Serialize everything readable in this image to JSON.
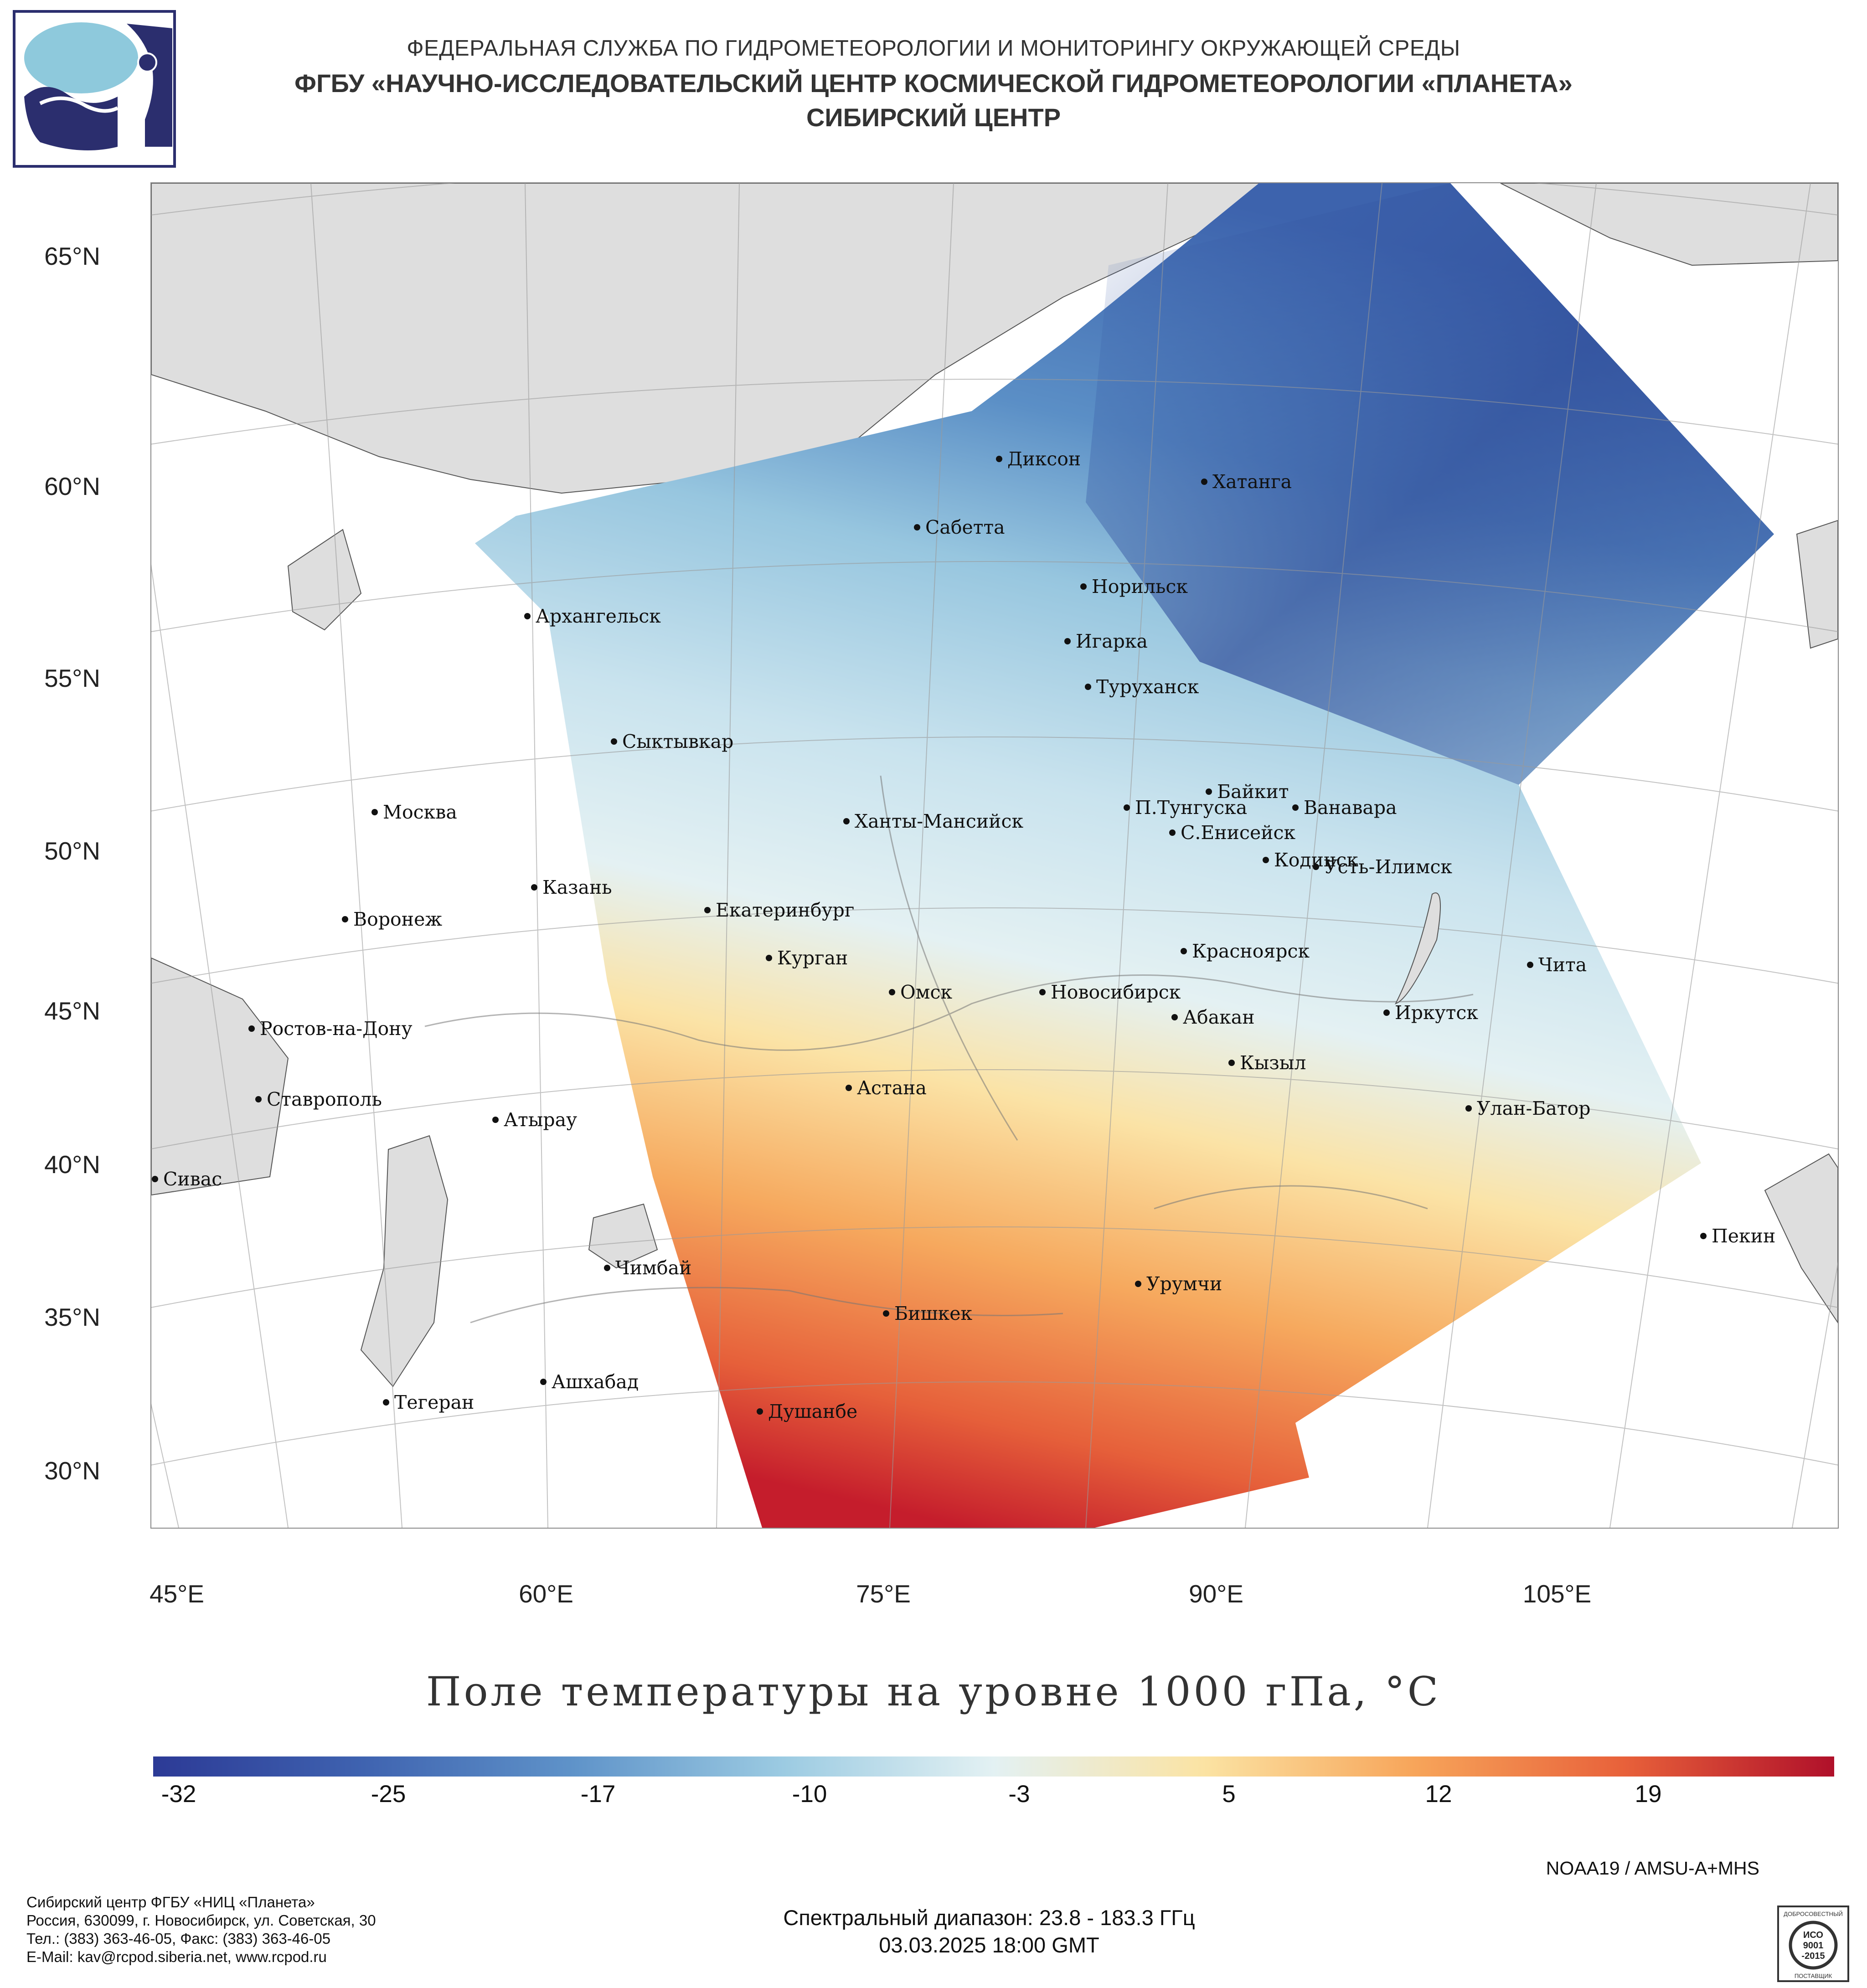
{
  "header": {
    "line1": "ФЕДЕРАЛЬНАЯ СЛУЖБА ПО ГИДРОМЕТЕОРОЛОГИИ И МОНИТОРИНГУ ОКРУЖАЮЩЕЙ СРЕДЫ",
    "line2": "ФГБУ «НАУЧНО-ИССЛЕДОВАТЕЛЬСКИЙ ЦЕНТР КОСМИЧЕСКОЙ ГИДРОМЕТЕОРОЛОГИИ «ПЛАНЕТА»",
    "line3": "СИБИРСКИЙ ЦЕНТР"
  },
  "map": {
    "lat_labels": [
      "65°N",
      "60°N",
      "55°N",
      "50°N",
      "45°N",
      "40°N",
      "35°N",
      "30°N"
    ],
    "lon_labels": [
      "45°E",
      "60°E",
      "75°E",
      "90°E",
      "105°E"
    ],
    "cities": [
      {
        "name": "Диксон"
      },
      {
        "name": "Хатанга"
      },
      {
        "name": "Сабетта"
      },
      {
        "name": "Норильск"
      },
      {
        "name": "Игарка"
      },
      {
        "name": "Архангельск"
      },
      {
        "name": "Туруханск"
      },
      {
        "name": "Сыктывкар"
      },
      {
        "name": "Байкит"
      },
      {
        "name": "П.Тунгуска"
      },
      {
        "name": "Ванавара"
      },
      {
        "name": "Москва"
      },
      {
        "name": "Ханты-Мансийск"
      },
      {
        "name": "С.Енисейск"
      },
      {
        "name": "Кодинск"
      },
      {
        "name": "Усть-Илимск"
      },
      {
        "name": "Казань"
      },
      {
        "name": "Екатеринбург"
      },
      {
        "name": "Воронеж"
      },
      {
        "name": "Красноярск"
      },
      {
        "name": "Курган"
      },
      {
        "name": "Чита"
      },
      {
        "name": "Омск"
      },
      {
        "name": "Новосибирск"
      },
      {
        "name": "Иркутск"
      },
      {
        "name": "Ростов-на-Дону"
      },
      {
        "name": "Абакан"
      },
      {
        "name": "Кызыл"
      },
      {
        "name": "Астана"
      },
      {
        "name": "Ставрополь"
      },
      {
        "name": "Улан-Батор"
      },
      {
        "name": "Атырау"
      },
      {
        "name": "Сивас"
      },
      {
        "name": "Пекин"
      },
      {
        "name": "Чимбай"
      },
      {
        "name": "Урумчи"
      },
      {
        "name": "Бишкек"
      },
      {
        "name": "Ашхабад"
      },
      {
        "name": "Тегеран"
      },
      {
        "name": "Душанбе"
      }
    ]
  },
  "title": "Поле температуры на уровне 1000 гПа, °C",
  "colorbar": {
    "ticks": [
      "-32",
      "-25",
      "-17",
      "-10",
      "-3",
      "5",
      "12",
      "19"
    ],
    "colors": [
      "#2c3a96",
      "#3f63b0",
      "#5f93c9",
      "#9ccbe2",
      "#e3f1f3",
      "#fbe3a3",
      "#f7a55a",
      "#e8613a",
      "#b0102a"
    ]
  },
  "satellite": "NOAA19 / AMSU-A+MHS",
  "footer": {
    "org_lines": [
      "Сибирский центр ФГБУ «НИЦ «Планета»",
      "Россия, 630099, г. Новосибирск, ул. Советская, 30",
      "Тел.: (383) 363-46-05, Факс: (383) 363-46-05",
      "E-Mail: kav@rcpod.siberia.net, www.rcpod.ru"
    ],
    "spectral": "Спектральный диапазон: 23.8 - 183.3 ГГц",
    "datetime": "03.03.2025 18:00 GMT"
  },
  "iso_badge": {
    "top": "ДОБРОСОВЕСТНЫЙ",
    "line1": "ИСО",
    "line2": "9001",
    "line3": "-2015",
    "bottom": "ПОСТАВЩИК"
  }
}
